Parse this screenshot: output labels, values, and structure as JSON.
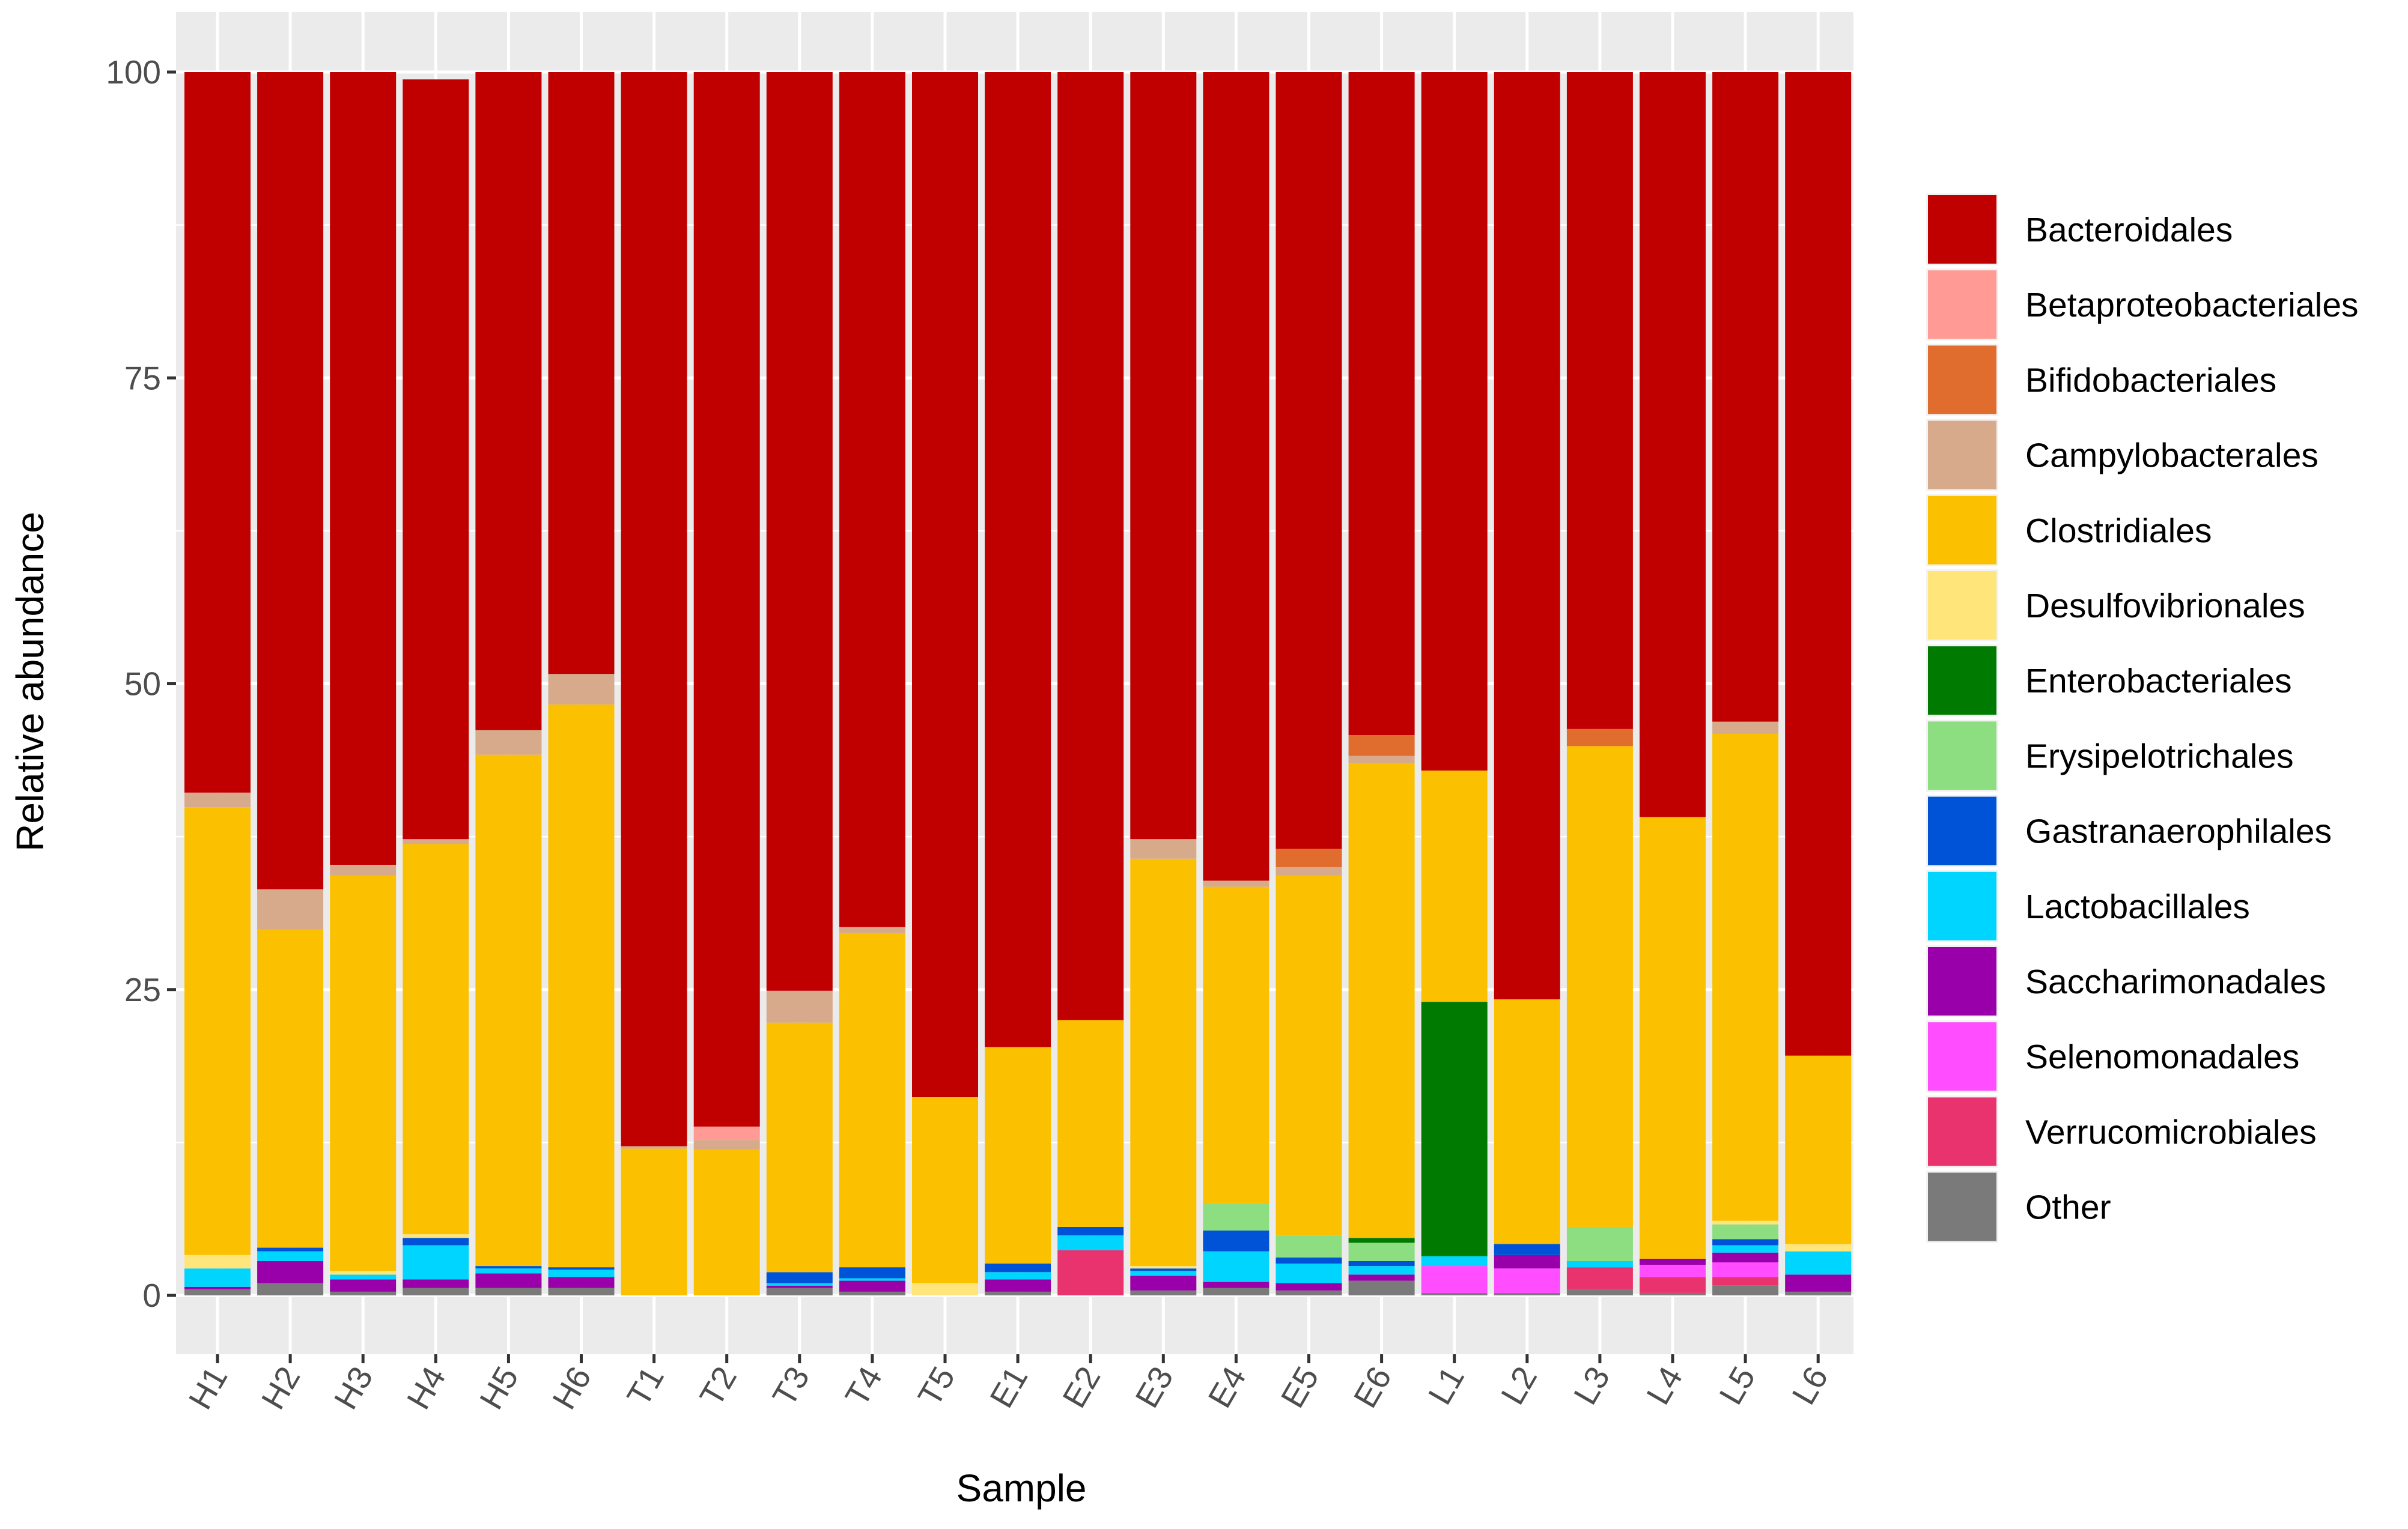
{
  "chart_data": {
    "type": "bar",
    "stacked": true,
    "xlabel": "Sample",
    "ylabel": "Relative abundance",
    "ylim": [
      0,
      100
    ],
    "yticks": [
      0,
      25,
      50,
      75,
      100
    ],
    "grid": true,
    "legend_position": "right",
    "categories": [
      "H1",
      "H2",
      "H3",
      "H4",
      "H5",
      "H6",
      "T1",
      "T2",
      "T3",
      "T4",
      "T5",
      "E1",
      "E2",
      "E3",
      "E4",
      "E5",
      "E6",
      "L1",
      "L2",
      "L3",
      "L4",
      "L5",
      "L6"
    ],
    "series": [
      {
        "name": "Other",
        "color": "#7a7a7a",
        "values": [
          0.5,
          1.0,
          0.3,
          0.6,
          0.6,
          0.6,
          0,
          0,
          0.6,
          0.3,
          0,
          0.3,
          0,
          0.4,
          0.6,
          0.4,
          1.2,
          0.2,
          0.2,
          0.5,
          0.2,
          0.8,
          0.3
        ]
      },
      {
        "name": "Verrucomicrobiales",
        "color": "#e8336e",
        "values": [
          0,
          0,
          0,
          0,
          0,
          0,
          0,
          0,
          0,
          0,
          0,
          0,
          3.7,
          0,
          0,
          0,
          0,
          0,
          0,
          1.8,
          1.3,
          0.7,
          0
        ]
      },
      {
        "name": "Selenomonadales",
        "color": "#ff4dff",
        "values": [
          0,
          0,
          0,
          0,
          0,
          0,
          0,
          0,
          0,
          0,
          0,
          0,
          0,
          0,
          0,
          0,
          0,
          2.2,
          2.0,
          0,
          1.0,
          1.2,
          0
        ]
      },
      {
        "name": "Saccharimonadales",
        "color": "#9900aa",
        "values": [
          0.2,
          1.8,
          1.0,
          0.7,
          1.2,
          0.9,
          0,
          0,
          0.2,
          0.9,
          0,
          1.0,
          0,
          1.2,
          0.5,
          0.6,
          0.5,
          0,
          1.1,
          0,
          0.5,
          0.8,
          1.4
        ]
      },
      {
        "name": "Lactobacillales",
        "color": "#00d5ff",
        "values": [
          1.5,
          0.8,
          0.4,
          2.8,
          0.4,
          0.6,
          0,
          0,
          0.2,
          0.2,
          0,
          0.6,
          1.2,
          0.4,
          2.5,
          1.6,
          0.7,
          0.8,
          0,
          0.5,
          0,
          0.6,
          1.9
        ]
      },
      {
        "name": "Gastranaerophilales",
        "color": "#0053d6",
        "values": [
          0,
          0.3,
          0,
          0.6,
          0.2,
          0.2,
          0,
          0,
          0.9,
          0.9,
          0,
          0.7,
          0.7,
          0.2,
          1.7,
          0.5,
          0.4,
          0,
          0.9,
          0,
          0,
          0.5,
          0
        ]
      },
      {
        "name": "Erysipelotrichales",
        "color": "#8ddd81",
        "values": [
          0,
          0,
          0,
          0,
          0,
          0,
          0,
          0,
          0,
          0,
          0,
          0,
          0,
          0,
          2.2,
          1.8,
          1.5,
          0,
          0,
          2.8,
          0,
          1.2,
          0
        ]
      },
      {
        "name": "Enterobacteriales",
        "color": "#007a00",
        "values": [
          0,
          0,
          0,
          0,
          0,
          0,
          0,
          0,
          0,
          0,
          0,
          0,
          0,
          0,
          0,
          0,
          0.4,
          20.8,
          0,
          0,
          0,
          0,
          0
        ]
      },
      {
        "name": "Desulfovibrionales",
        "color": "#ffe57a",
        "values": [
          1.1,
          0,
          0.3,
          0.3,
          0,
          0,
          0,
          0,
          0,
          0,
          1.0,
          0,
          0,
          0.2,
          0,
          0,
          0,
          0,
          0,
          0,
          0,
          0.3,
          0.6
        ]
      },
      {
        "name": "Clostridiales",
        "color": "#fbc100",
        "values": [
          36.6,
          26.0,
          32.3,
          31.9,
          41.8,
          46.0,
          12.0,
          11.9,
          20.4,
          27.3,
          15.2,
          17.7,
          16.9,
          33.3,
          25.9,
          29.4,
          38.8,
          18.9,
          20.0,
          39.3,
          36.1,
          39.8,
          15.4
        ]
      },
      {
        "name": "Campylobacterales",
        "color": "#d6aa8a",
        "values": [
          1.2,
          3.3,
          0.9,
          0.4,
          2.0,
          2.5,
          0.2,
          0.8,
          2.6,
          0.5,
          0,
          0,
          0,
          1.6,
          0.5,
          0.7,
          0.6,
          0,
          0,
          0,
          0,
          1.0,
          0
        ]
      },
      {
        "name": "Bifidobacteriales",
        "color": "#e06c2e",
        "values": [
          0,
          0,
          0,
          0,
          0,
          0,
          0,
          0,
          0,
          0,
          0,
          0,
          0,
          0,
          0,
          1.5,
          1.7,
          0,
          0,
          1.4,
          0,
          0,
          0
        ]
      },
      {
        "name": "Betaproteobacteriales",
        "color": "#ff9a94",
        "values": [
          0,
          0,
          0,
          0,
          0,
          0,
          0,
          1.1,
          0,
          0,
          0,
          0,
          0,
          0,
          0,
          0,
          0,
          0,
          0,
          0,
          0,
          0,
          0
        ]
      },
      {
        "name": "Bacteroidales",
        "color": "#c00000",
        "values": [
          58.9,
          66.8,
          64.8,
          62.1,
          53.8,
          49.2,
          87.8,
          86.2,
          75.1,
          69.9,
          83.8,
          79.7,
          77.5,
          62.7,
          66.1,
          63.5,
          54.2,
          57.1,
          75.8,
          53.7,
          60.9,
          53.1,
          80.4
        ]
      }
    ],
    "legend_order": [
      "Bacteroidales",
      "Betaproteobacteriales",
      "Bifidobacteriales",
      "Campylobacterales",
      "Clostridiales",
      "Desulfovibrionales",
      "Enterobacteriales",
      "Erysipelotrichales",
      "Gastranaerophilales",
      "Lactobacillales",
      "Saccharimonadales",
      "Selenomonadales",
      "Verrucomicrobiales",
      "Other"
    ]
  }
}
